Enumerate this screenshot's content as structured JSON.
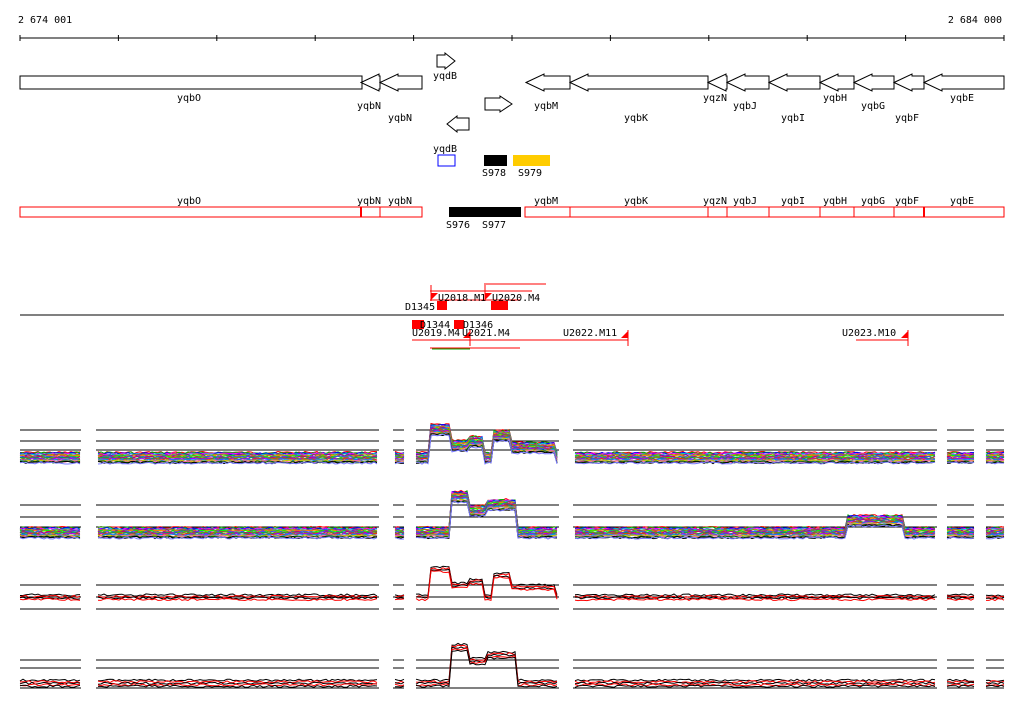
{
  "coords": {
    "left": "2 674 001",
    "right": "2 684 000"
  },
  "genes_top": [
    {
      "name": "yqbO",
      "dir": "left"
    },
    {
      "name": "yqbN",
      "dir": "left"
    },
    {
      "name": "yqbN",
      "dir": "left"
    },
    {
      "name": "yqdB",
      "dir": "right"
    },
    {
      "name": "yqdB",
      "dir": "left"
    },
    {
      "name": "yqbM",
      "dir": "left"
    },
    {
      "name": "yqbK",
      "dir": "left"
    },
    {
      "name": "yqzN",
      "dir": "left"
    },
    {
      "name": "yqbJ",
      "dir": "left"
    },
    {
      "name": "yqbI",
      "dir": "left"
    },
    {
      "name": "yqbH",
      "dir": "left"
    },
    {
      "name": "yqbG",
      "dir": "left"
    },
    {
      "name": "yqbF",
      "dir": "left"
    },
    {
      "name": "yqbE",
      "dir": "left"
    }
  ],
  "unlabeled_arrow": {
    "dir": "right"
  },
  "small_features": [
    {
      "name": "S978",
      "color": "#000000"
    },
    {
      "name": "S979",
      "color": "#ffcc00"
    }
  ],
  "gene_bar": [
    "yqbO",
    "yqbN",
    "yqbN",
    "yqbM",
    "yqbK",
    "yqzN",
    "yqbJ",
    "yqbI",
    "yqbH",
    "yqbG",
    "yqbF",
    "yqbE"
  ],
  "bar_features": [
    "S976",
    "S977"
  ],
  "bar_color": "#ff0000",
  "blue_box_color": "#0000ff",
  "transcripts_upper": [
    "U2018.M1",
    "U2020.M4",
    "D1345",
    "D1344",
    "D1346"
  ],
  "transcripts_lower": [
    "U2019.M4",
    "U2021.M4",
    "U2022.M11",
    "U2023.M10"
  ],
  "transcript_color": "#ff0000",
  "tracks": 4
}
